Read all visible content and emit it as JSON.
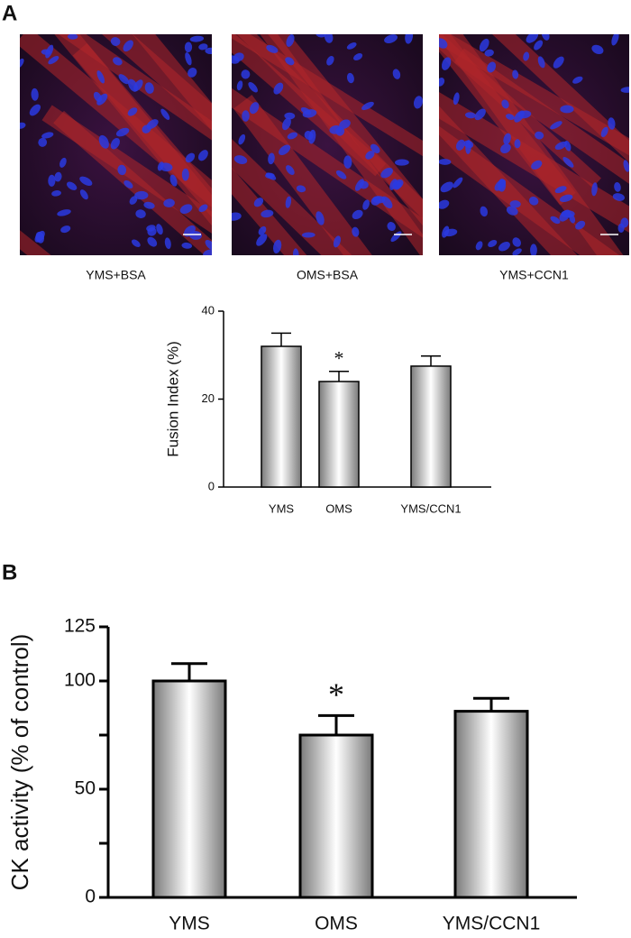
{
  "panel_labels": [
    "A",
    "B"
  ],
  "images": [
    {
      "caption": "YMS+BSA"
    },
    {
      "caption": "OMS+BSA"
    },
    {
      "caption": "YMS+CCN1"
    }
  ],
  "chart_data": [
    {
      "type": "bar",
      "ylabel": "Fusion Index (%)",
      "categories": [
        "YMS",
        "OMS",
        "YMS/CCN1"
      ],
      "values": [
        32,
        24,
        27.5
      ],
      "errors": [
        3,
        2.3,
        2.3
      ],
      "ylim": [
        0,
        40
      ],
      "yticks": [
        0,
        20,
        40
      ],
      "annotations": [
        {
          "text": "*",
          "category": "OMS"
        }
      ]
    },
    {
      "type": "bar",
      "ylabel": "CK activity (% of control)",
      "categories": [
        "YMS",
        "OMS",
        "YMS/CCN1"
      ],
      "values": [
        100,
        75,
        86
      ],
      "errors": [
        8,
        9,
        6
      ],
      "ylim": [
        0,
        125
      ],
      "yticks": [
        0,
        50,
        100,
        125
      ],
      "minor_yticks": [
        25,
        75
      ],
      "annotations": [
        {
          "text": "*",
          "category": "OMS"
        }
      ]
    }
  ]
}
